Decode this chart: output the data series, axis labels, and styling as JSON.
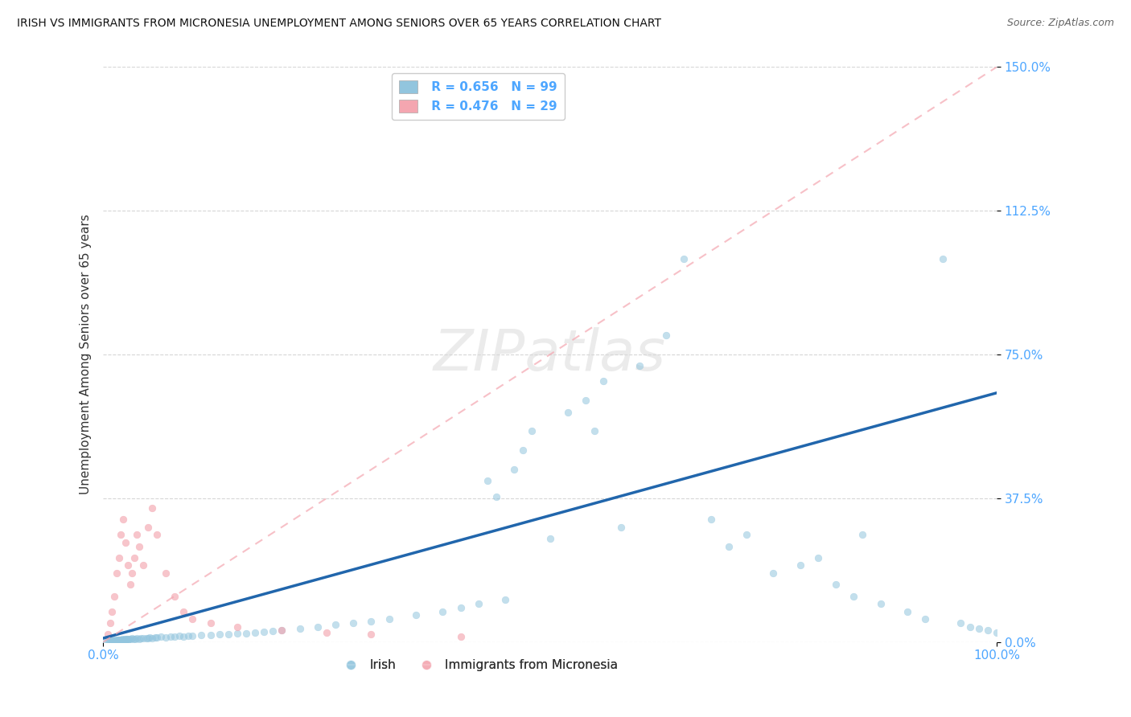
{
  "title": "IRISH VS IMMIGRANTS FROM MICRONESIA UNEMPLOYMENT AMONG SENIORS OVER 65 YEARS CORRELATION CHART",
  "source": "Source: ZipAtlas.com",
  "ylabel": "Unemployment Among Seniors over 65 years",
  "ytick_values": [
    0.0,
    37.5,
    75.0,
    112.5,
    150.0
  ],
  "ytick_labels": [
    "0.0%",
    "37.5%",
    "75.0%",
    "112.5%",
    "150.0%"
  ],
  "xlim": [
    0.0,
    100.0
  ],
  "ylim": [
    0.0,
    150.0
  ],
  "legend_irish_R": "0.656",
  "legend_irish_N": "99",
  "legend_micro_R": "0.476",
  "legend_micro_N": "29",
  "irish_color": "#92c5de",
  "micro_color": "#f4a6b0",
  "irish_line_color": "#2166ac",
  "micro_line_color": "#f4a6b0",
  "grid_color": "#cccccc",
  "background_color": "#ffffff",
  "irish_x": [
    0.3,
    0.5,
    0.7,
    0.8,
    1.0,
    1.1,
    1.2,
    1.3,
    1.4,
    1.5,
    1.6,
    1.7,
    1.8,
    1.9,
    2.0,
    2.1,
    2.2,
    2.3,
    2.4,
    2.5,
    2.6,
    2.7,
    2.8,
    2.9,
    3.0,
    3.2,
    3.4,
    3.6,
    3.8,
    4.0,
    4.2,
    4.5,
    4.8,
    5.0,
    5.2,
    5.5,
    5.8,
    6.0,
    6.5,
    7.0,
    7.5,
    8.0,
    8.5,
    9.0,
    9.5,
    10.0,
    11.0,
    12.0,
    13.0,
    14.0,
    15.0,
    16.0,
    17.0,
    18.0,
    19.0,
    20.0,
    22.0,
    24.0,
    26.0,
    28.0,
    30.0,
    32.0,
    35.0,
    38.0,
    40.0,
    42.0,
    45.0,
    46.0,
    47.0,
    48.0,
    50.0,
    52.0,
    54.0,
    56.0,
    58.0,
    60.0,
    63.0,
    65.0,
    68.0,
    70.0,
    72.0,
    75.0,
    78.0,
    80.0,
    82.0,
    84.0,
    85.0,
    87.0,
    90.0,
    92.0,
    94.0,
    96.0,
    97.0,
    98.0,
    99.0,
    100.0,
    55.0,
    44.0,
    43.0
  ],
  "irish_y": [
    0.2,
    0.3,
    0.2,
    0.4,
    0.3,
    0.5,
    0.4,
    0.3,
    0.5,
    0.4,
    0.6,
    0.5,
    0.4,
    0.6,
    0.5,
    0.7,
    0.6,
    0.5,
    0.7,
    0.6,
    0.8,
    0.7,
    0.6,
    0.8,
    0.7,
    0.9,
    0.8,
    0.7,
    0.9,
    0.8,
    1.0,
    0.9,
    1.1,
    1.0,
    1.2,
    1.1,
    1.3,
    1.2,
    1.4,
    1.3,
    1.5,
    1.4,
    1.6,
    1.5,
    1.7,
    1.6,
    1.8,
    1.9,
    2.0,
    2.1,
    2.2,
    2.3,
    2.5,
    2.7,
    2.9,
    3.1,
    3.5,
    4.0,
    4.5,
    5.0,
    5.5,
    6.0,
    7.0,
    8.0,
    9.0,
    10.0,
    11.0,
    45.0,
    50.0,
    55.0,
    27.0,
    60.0,
    63.0,
    68.0,
    30.0,
    72.0,
    80.0,
    100.0,
    32.0,
    25.0,
    28.0,
    18.0,
    20.0,
    22.0,
    15.0,
    12.0,
    28.0,
    10.0,
    8.0,
    6.0,
    100.0,
    5.0,
    4.0,
    3.5,
    3.0,
    2.5,
    55.0,
    38.0,
    42.0
  ],
  "micro_x": [
    0.5,
    0.8,
    1.0,
    1.2,
    1.5,
    1.8,
    2.0,
    2.2,
    2.5,
    2.8,
    3.0,
    3.2,
    3.5,
    3.8,
    4.0,
    4.5,
    5.0,
    5.5,
    6.0,
    7.0,
    8.0,
    9.0,
    10.0,
    12.0,
    15.0,
    20.0,
    25.0,
    30.0,
    40.0
  ],
  "micro_y": [
    2.0,
    5.0,
    8.0,
    12.0,
    18.0,
    22.0,
    28.0,
    32.0,
    26.0,
    20.0,
    15.0,
    18.0,
    22.0,
    28.0,
    25.0,
    20.0,
    30.0,
    35.0,
    28.0,
    18.0,
    12.0,
    8.0,
    6.0,
    5.0,
    4.0,
    3.0,
    2.5,
    2.0,
    1.5
  ],
  "irish_line": [
    0,
    100,
    1,
    65
  ],
  "micro_line": [
    0,
    100,
    0,
    150
  ],
  "watermark_text": "ZIPatlas"
}
